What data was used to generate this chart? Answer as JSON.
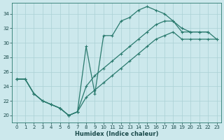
{
  "xlabel": "Humidex (Indice chaleur)",
  "background_color": "#cce8ec",
  "grid_color": "#aad0d5",
  "line_color": "#2a7a6e",
  "xlim": [
    -0.5,
    23.5
  ],
  "ylim": [
    19.0,
    35.5
  ],
  "yticks": [
    20,
    22,
    24,
    26,
    28,
    30,
    32,
    34
  ],
  "xticks": [
    0,
    1,
    2,
    3,
    4,
    5,
    6,
    7,
    8,
    9,
    10,
    11,
    12,
    13,
    14,
    15,
    16,
    17,
    18,
    19,
    20,
    21,
    22,
    23
  ],
  "line1_x": [
    0,
    1,
    2,
    3,
    4,
    5,
    6,
    7,
    8,
    9,
    10,
    11,
    12,
    13,
    14,
    15,
    16,
    17,
    18,
    19,
    20,
    21,
    22
  ],
  "line1_y": [
    25.0,
    25.0,
    23.0,
    22.0,
    21.5,
    21.0,
    20.0,
    20.5,
    29.5,
    23.0,
    31.0,
    31.0,
    33.0,
    33.5,
    34.5,
    35.0,
    34.5,
    34.0,
    33.0,
    31.5,
    31.5,
    31.5,
    31.5
  ],
  "line2_x": [
    0,
    1,
    2,
    3,
    4,
    5,
    6,
    7,
    8,
    9,
    10,
    11,
    12,
    13,
    14,
    15,
    16,
    17,
    18,
    19,
    20,
    21,
    22,
    23
  ],
  "line2_y": [
    25.0,
    25.0,
    23.0,
    22.0,
    21.5,
    21.0,
    20.0,
    20.5,
    24.0,
    25.5,
    26.5,
    27.5,
    28.5,
    29.5,
    30.5,
    31.5,
    32.5,
    33.0,
    33.0,
    32.0,
    31.5,
    31.5,
    31.5,
    30.5
  ],
  "line3_x": [
    0,
    1,
    2,
    3,
    4,
    5,
    6,
    7,
    8,
    9,
    10,
    11,
    12,
    13,
    14,
    15,
    16,
    17,
    18,
    19,
    20,
    21,
    22,
    23
  ],
  "line3_y": [
    25.0,
    25.0,
    23.0,
    22.0,
    21.5,
    21.0,
    20.0,
    20.5,
    22.5,
    23.5,
    24.5,
    25.5,
    26.5,
    27.5,
    28.5,
    29.5,
    30.5,
    31.0,
    31.5,
    30.5,
    30.5,
    30.5,
    30.5,
    30.5
  ]
}
